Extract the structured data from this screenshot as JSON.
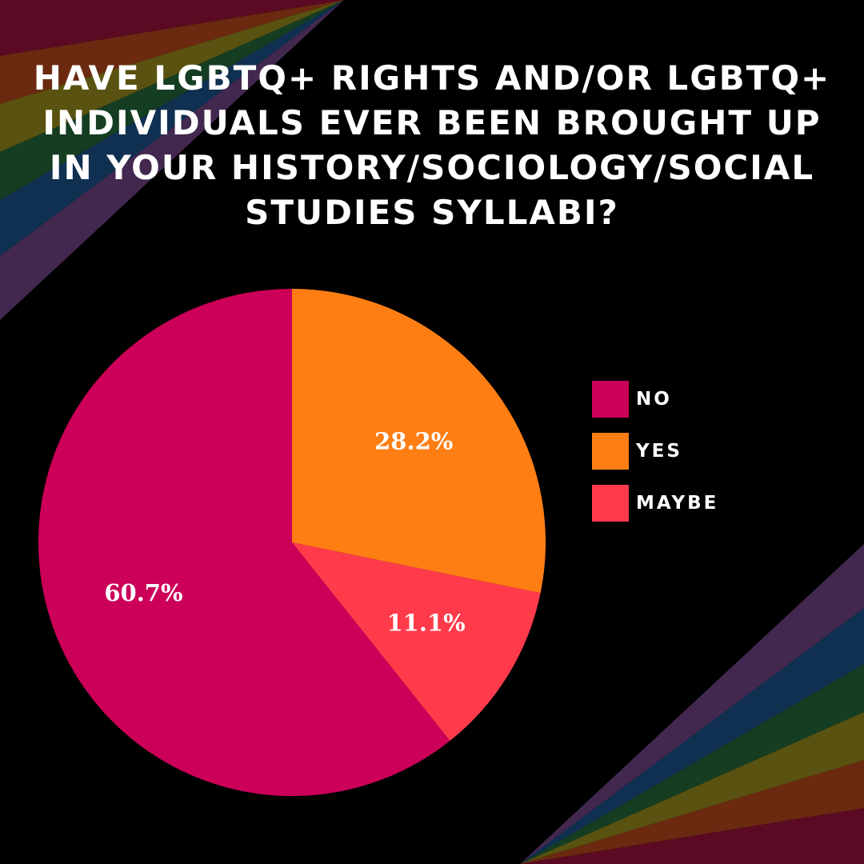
{
  "background_color": "#000000",
  "rainbow_stripe_colors": [
    "#5a0a22",
    "#6b2a10",
    "#5a5210",
    "#153d22",
    "#0f3050",
    "#42284f"
  ],
  "chart_data": {
    "type": "pie",
    "title": "HAVE LGBTQ+ RIGHTS AND/OR LGBTQ+ INDIVIDUALS EVER BEEN BROUGHT UP IN YOUR HISTORY/SOCIOLOGY/SOCIAL STUDIES SYLLABI?",
    "slices": [
      {
        "label": "YES",
        "value": 28.2,
        "value_label": "28.2%",
        "color": "#ff7e14"
      },
      {
        "label": "MAYBE",
        "value": 11.1,
        "value_label": "11.1%",
        "color": "#ff3b4b"
      },
      {
        "label": "NO",
        "value": 60.7,
        "value_label": "60.7%",
        "color": "#cc0058"
      }
    ],
    "legend": {
      "position": "right",
      "items": [
        {
          "label": "NO",
          "color": "#cc0058"
        },
        {
          "label": "YES",
          "color": "#ff7e14"
        },
        {
          "label": "MAYBE",
          "color": "#ff3b4b"
        }
      ]
    }
  }
}
